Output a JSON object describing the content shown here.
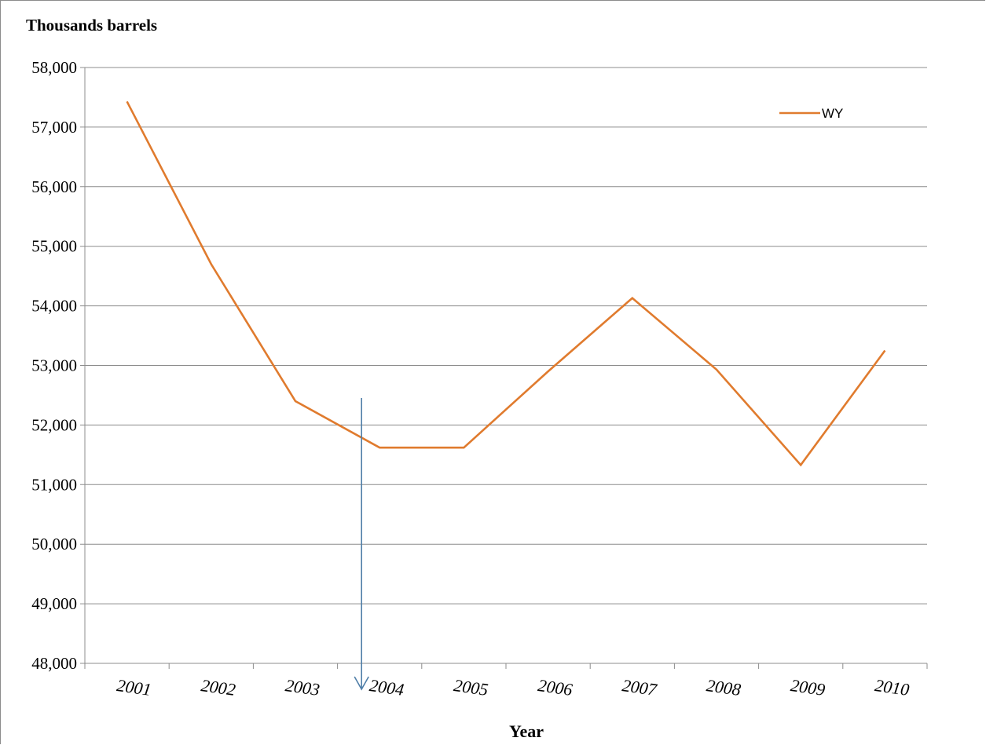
{
  "chart_data": {
    "type": "line",
    "ylabel": "Thousands barrels",
    "xlabel": "Year",
    "categories": [
      "2001",
      "2002",
      "2003",
      "2004",
      "2005",
      "2006",
      "2007",
      "2008",
      "2009",
      "2010"
    ],
    "series": [
      {
        "name": "WY",
        "color": "#E07B2E",
        "values": [
          57430,
          54700,
          52400,
          51620,
          51620,
          52900,
          54130,
          52930,
          51330,
          53250
        ]
      }
    ],
    "ylim": [
      48000,
      58000
    ],
    "ytick_step": 1000,
    "ytick_labels": [
      "48,000",
      "49,000",
      "50,000",
      "51,000",
      "52,000",
      "53,000",
      "54,000",
      "55,000",
      "56,000",
      "57,000",
      "58,000"
    ],
    "grid": true,
    "legend_position": "top-right",
    "annotation": {
      "type": "arrow",
      "direction": "down",
      "color": "#4F7EA8",
      "at_category": "2004"
    }
  }
}
